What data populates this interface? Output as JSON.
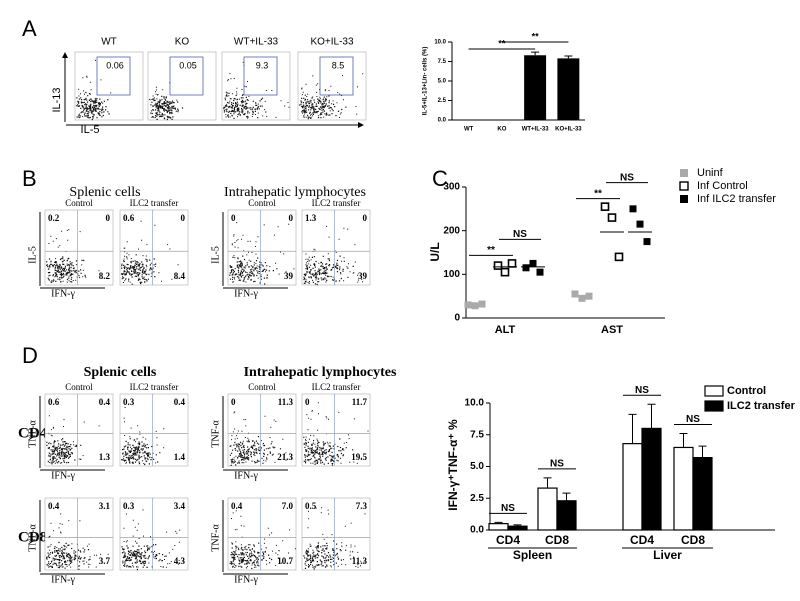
{
  "panel_labels": [
    "A",
    "B",
    "C",
    "D"
  ],
  "flow_panels": {
    "A": {
      "y_label": "IL-13",
      "x_label": "IL-5",
      "plots": [
        {
          "title": "WT",
          "gate": "0.06"
        },
        {
          "title": "KO",
          "gate": "0.05"
        },
        {
          "title": "WT+IL-33",
          "gate": "9.3"
        },
        {
          "title": "KO+IL-33",
          "gate": "8.5"
        }
      ]
    },
    "B": {
      "y_label": "IL-5",
      "x_label": "IFN-γ",
      "groups": [
        {
          "title": "Splenic cells",
          "plots": [
            {
              "title": "Control",
              "ul": "0.2",
              "ur": "0",
              "lr": "8.2"
            },
            {
              "title": "ILC2 transfer",
              "ul": "0.6",
              "ur": "0",
              "lr": "8.4"
            }
          ]
        },
        {
          "title": "Intrahepatic lymphocytes",
          "plots": [
            {
              "title": "Control",
              "ul": "0",
              "ur": "0",
              "lr": "39"
            },
            {
              "title": "ILC2 transfer",
              "ul": "1.3",
              "ur": "0",
              "lr": "39"
            }
          ]
        }
      ]
    },
    "D": {
      "y_label": "TNF-α",
      "x_label": "IFN-γ",
      "groups": [
        "Splenic cells",
        "Intrahepatic lymphocytes"
      ],
      "column_titles": [
        "Control",
        "ILC2 transfer",
        "Control",
        "ILC2 transfer"
      ],
      "rows": [
        {
          "label": "CD4",
          "plots": [
            {
              "ul": "0.6",
              "ur": "0.4",
              "lr": "1.3"
            },
            {
              "ul": "0.3",
              "ur": "0.4",
              "lr": "1.4"
            },
            {
              "ul": "0",
              "ur": "11.3",
              "lr": "21.3"
            },
            {
              "ul": "0",
              "ur": "11.7",
              "lr": "19.5"
            }
          ]
        },
        {
          "label": "CD8",
          "plots": [
            {
              "ul": "0.4",
              "ur": "3.1",
              "lr": "3.7"
            },
            {
              "ul": "0.3",
              "ur": "3.4",
              "lr": "4.3"
            },
            {
              "ul": "0.4",
              "ur": "7.0",
              "lr": "10.7"
            },
            {
              "ul": "0.5",
              "ur": "7.3",
              "lr": "11.3"
            }
          ]
        }
      ]
    }
  },
  "chart_data": [
    {
      "type": "bar",
      "y_label": "IL-5+IL-13+Lin- cells (%)",
      "categories": [
        "WT",
        "KO",
        "WT+IL-33",
        "KO+IL-33"
      ],
      "values": [
        0,
        0,
        8.3,
        7.9
      ],
      "errors": [
        0,
        0,
        0.4,
        0.3
      ],
      "color": "#000000",
      "ylim": [
        0,
        10
      ],
      "yticks": [
        {
          "value": 0,
          "label": "0.0"
        },
        {
          "value": 2.5,
          "label": "2.5"
        },
        {
          "value": 5,
          "label": "5.0"
        },
        {
          "value": 7.5,
          "label": "7.5"
        },
        {
          "value": 10,
          "label": "10.0"
        }
      ],
      "annotations": [
        "**",
        "**"
      ]
    },
    {
      "type": "scatter",
      "y_label": "U/L",
      "categories": [
        "ALT",
        "AST"
      ],
      "series": [
        {
          "name": "Uninf",
          "color": "#aaaaaa",
          "filled": true,
          "values": [
            [
              30,
              28,
              32
            ],
            [
              55,
              45,
              50
            ]
          ]
        },
        {
          "name": "Inf Control",
          "color": "#000000",
          "filled": false,
          "values": [
            [
              120,
              105,
              125
            ],
            [
              255,
              230,
              140
            ]
          ],
          "means": [
            117,
            197
          ]
        },
        {
          "name": "Inf ILC2 transfer",
          "color": "#000000",
          "filled": true,
          "values": [
            [
              115,
              125,
              105
            ],
            [
              250,
              215,
              175
            ]
          ],
          "means": [
            117,
            197
          ]
        }
      ],
      "ylim": [
        0,
        300
      ],
      "yticks": [
        0,
        100,
        200,
        300
      ],
      "annotations": [
        "**",
        "NS",
        "**",
        "NS"
      ]
    },
    {
      "type": "groupbar",
      "y_label": "IFN-γ⁺TNF-α⁺ %",
      "categories": [
        "CD4",
        "CD8",
        "CD4",
        "CD8"
      ],
      "groups": [
        "Spleen",
        "Liver"
      ],
      "series": [
        {
          "name": "Control",
          "color": "#ffffff",
          "values": [
            0.5,
            3.3,
            6.8,
            6.5
          ],
          "errors": [
            0.1,
            0.8,
            2.3,
            1.1
          ]
        },
        {
          "name": "ILC2 transfer",
          "color": "#000000",
          "values": [
            0.3,
            2.3,
            8.0,
            5.7
          ],
          "errors": [
            0.1,
            0.6,
            1.9,
            0.9
          ]
        }
      ],
      "ylim": [
        0,
        10
      ],
      "yticks": [
        {
          "value": 0,
          "label": "0.0"
        },
        {
          "value": 2.5,
          "label": "2.5"
        },
        {
          "value": 5,
          "label": "5.0"
        },
        {
          "value": 7.5,
          "label": "7.5"
        },
        {
          "value": 10,
          "label": "10.0"
        }
      ],
      "annotations": [
        "NS",
        "NS",
        "NS",
        "NS"
      ]
    }
  ]
}
